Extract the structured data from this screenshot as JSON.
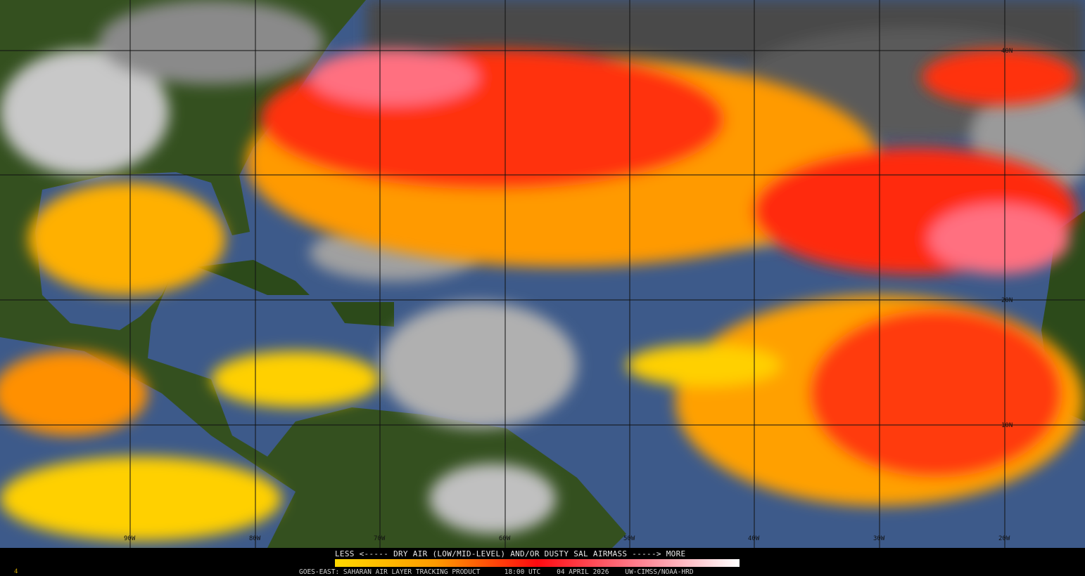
{
  "map": {
    "product": "GOES-EAST: SAHARAN AIR LAYER TRACKING PRODUCT",
    "time": "18:00 UTC",
    "date": "04 APRIL 2026",
    "credit": "UW-CIMSS/NOAA-HRD",
    "frame": "4",
    "longitude_labels": [
      "90W",
      "80W",
      "70W",
      "60W",
      "50W",
      "40W",
      "30W",
      "20W"
    ],
    "latitude_labels": [
      "40N",
      "20N",
      "10N"
    ],
    "legend": {
      "text": "LESS <----- DRY AIR (LOW/MID-LEVEL) AND/OR DUSTY SAL AIRMASS -----> MORE",
      "colors": [
        "#ffd800",
        "#ff9a00",
        "#ff4000",
        "#ff0a10",
        "#ff8090",
        "#ffffff"
      ]
    },
    "colors": {
      "ocean": "#3d5a8a",
      "land": "#2f4a1e",
      "cloud": "#b8b8b8"
    }
  }
}
